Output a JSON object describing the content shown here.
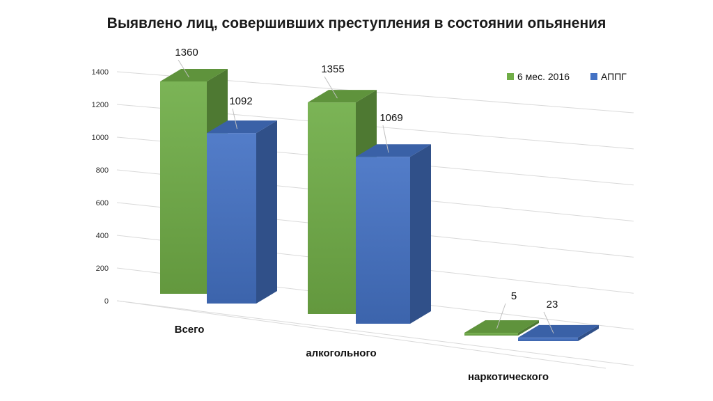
{
  "chart_data": {
    "type": "bar",
    "title": "Выявлено лиц, совершивших преступления в состоянии опьянения",
    "categories": [
      "Всего",
      "алкогольного",
      "наркотического"
    ],
    "series": [
      {
        "name": "6 мес. 2016",
        "values": [
          1360,
          1355,
          5
        ],
        "color": "#70ad47"
      },
      {
        "name": "АППГ",
        "values": [
          1092,
          1069,
          23
        ],
        "color": "#4472c4"
      }
    ],
    "yticks": [
      0,
      200,
      400,
      600,
      800,
      1000,
      1200,
      1400
    ],
    "ylim": [
      0,
      1400
    ],
    "legend_position": "top-right",
    "grid": true,
    "data_labels": true,
    "style": "3d-column"
  }
}
